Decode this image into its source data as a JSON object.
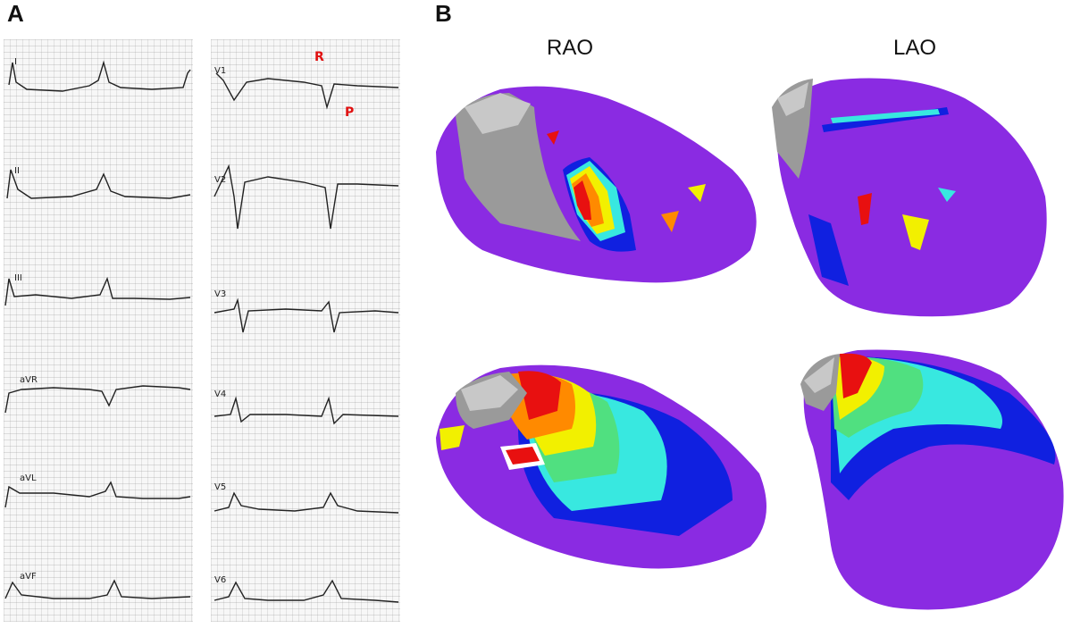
{
  "panels": {
    "a": "A",
    "b": "B"
  },
  "ecg": {
    "left_leads": [
      "I",
      "II",
      "III",
      "aVR",
      "aVL",
      "aVF"
    ],
    "right_leads": [
      "V1",
      "V2",
      "V3",
      "V4",
      "V5",
      "V6"
    ],
    "marker_r": "R",
    "marker_p": "P"
  },
  "maps": {
    "view_left": "RAO",
    "view_right": "LAO",
    "colors": {
      "purple": "#8a2be2",
      "gray": "#9a9a9a",
      "red": "#e81010",
      "orange": "#ff8a00",
      "yellow": "#f2f000",
      "green": "#50e080",
      "cyan": "#38e8e0",
      "blue": "#1020e0"
    }
  }
}
